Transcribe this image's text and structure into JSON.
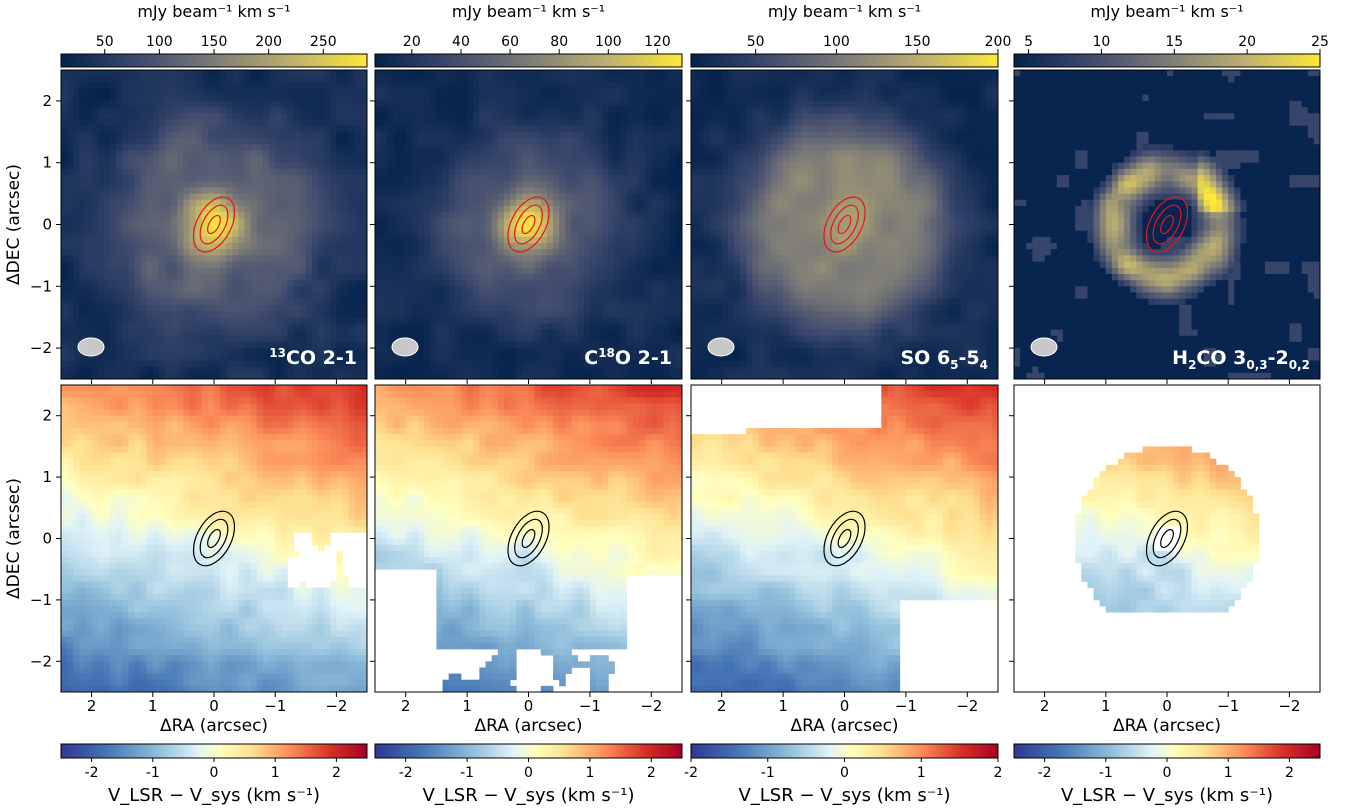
{
  "figure": {
    "mom0_unit_label": "mJy beam⁻¹ km s⁻¹",
    "ylabel": "ΔDEC (arcsec)",
    "xlabel": "ΔRA (arcsec)",
    "vel_colorbar_label": "V_LSR − V_sys (km s⁻¹)"
  },
  "colors": {
    "mom0_low": "#03224c",
    "mom0_mid": "#7c7b78",
    "mom0_high": "#fee838",
    "vel_neg": "#313695",
    "vel_zero": "#ffffbf",
    "vel_pos": "#a50026",
    "contour_top": "#e8141e",
    "contour_bottom": "#000000",
    "beam": "#c8c8c8"
  },
  "chart_data": [
    {
      "type": "heatmap",
      "row": "moment0",
      "molecule": "13CO 2-1",
      "label_main": "13",
      "label_rest": "CO 2-1",
      "colorbar_ticks": [
        "50",
        "100",
        "150",
        "200",
        "250"
      ],
      "colorbar_range": [
        10,
        290
      ],
      "colorbar_label": "mJy beam⁻¹ km s⁻¹",
      "xlim": [
        2.5,
        -2.5
      ],
      "ylim": [
        -2.5,
        2.5
      ],
      "yticks": [
        "2",
        "1",
        "0",
        "−1",
        "−2"
      ],
      "show_yticklabels": true
    },
    {
      "type": "heatmap",
      "row": "moment0",
      "molecule": "C18O 2-1",
      "colorbar_ticks": [
        "20",
        "40",
        "60",
        "80",
        "100",
        "120"
      ],
      "colorbar_range": [
        5,
        130
      ],
      "colorbar_label": "mJy beam⁻¹ km s⁻¹",
      "xlim": [
        2.5,
        -2.5
      ],
      "ylim": [
        -2.5,
        2.5
      ]
    },
    {
      "type": "heatmap",
      "row": "moment0",
      "molecule": "SO 65-54",
      "colorbar_ticks": [
        "50",
        "100",
        "150",
        "200"
      ],
      "colorbar_range": [
        10,
        200
      ],
      "colorbar_label": "mJy beam⁻¹ km s⁻¹",
      "xlim": [
        2.5,
        -2.5
      ],
      "ylim": [
        -2.5,
        2.5
      ]
    },
    {
      "type": "heatmap",
      "row": "moment0",
      "molecule": "H2CO 30,3-20,2",
      "colorbar_ticks": [
        "5",
        "10",
        "15",
        "20",
        "25"
      ],
      "colorbar_range": [
        4,
        25
      ],
      "colorbar_label": "mJy beam⁻¹ km s⁻¹",
      "xlim": [
        2.5,
        -2.5
      ],
      "ylim": [
        -2.5,
        2.5
      ]
    },
    {
      "type": "heatmap",
      "row": "moment1",
      "molecule": "13CO 2-1",
      "colorbar_ticks": [
        "-2",
        "-1",
        "0",
        "1",
        "2"
      ],
      "colorbar_range": [
        -2.5,
        2.5
      ],
      "colorbar_label": "V_LSR − V_sys (km s⁻¹)",
      "xlabel": "ΔRA (arcsec)",
      "xticks": [
        "2",
        "1",
        "0",
        "−1",
        "−2"
      ],
      "xlim": [
        2.5,
        -2.5
      ],
      "ylim": [
        -2.5,
        2.5
      ]
    },
    {
      "type": "heatmap",
      "row": "moment1",
      "molecule": "C18O 2-1",
      "colorbar_ticks": [
        "-2",
        "-1",
        "0",
        "1",
        "2"
      ],
      "colorbar_range": [
        -2.5,
        2.5
      ],
      "colorbar_label": "V_LSR − V_sys (km s⁻¹)",
      "xlabel": "ΔRA (arcsec)",
      "xticks": [
        "2",
        "1",
        "0",
        "−1",
        "−2"
      ],
      "xlim": [
        2.5,
        -2.5
      ],
      "ylim": [
        -2.5,
        2.5
      ]
    },
    {
      "type": "heatmap",
      "row": "moment1",
      "molecule": "SO 65-54",
      "colorbar_ticks": [
        "-2",
        "-1",
        "0",
        "1",
        "2"
      ],
      "colorbar_range": [
        -2,
        2
      ],
      "colorbar_label": "V_LSR − V_sys (km s⁻¹)",
      "xlabel": "ΔRA (arcsec)",
      "xticks": [
        "2",
        "1",
        "0",
        "−1",
        "−2"
      ],
      "xlim": [
        2.5,
        -2.5
      ],
      "ylim": [
        -2.5,
        2.5
      ]
    },
    {
      "type": "heatmap",
      "row": "moment1",
      "molecule": "H2CO 30,3-20,2",
      "colorbar_ticks": [
        "-2",
        "-1",
        "0",
        "1",
        "2"
      ],
      "colorbar_range": [
        -2.5,
        2.5
      ],
      "colorbar_label": "V_LSR − V_sys (km s⁻¹)",
      "xlabel": "ΔRA (arcsec)",
      "xticks": [
        "2",
        "1",
        "0",
        "−1",
        "−2"
      ],
      "xlim": [
        2.5,
        -2.5
      ],
      "ylim": [
        -2.5,
        2.5
      ]
    }
  ]
}
